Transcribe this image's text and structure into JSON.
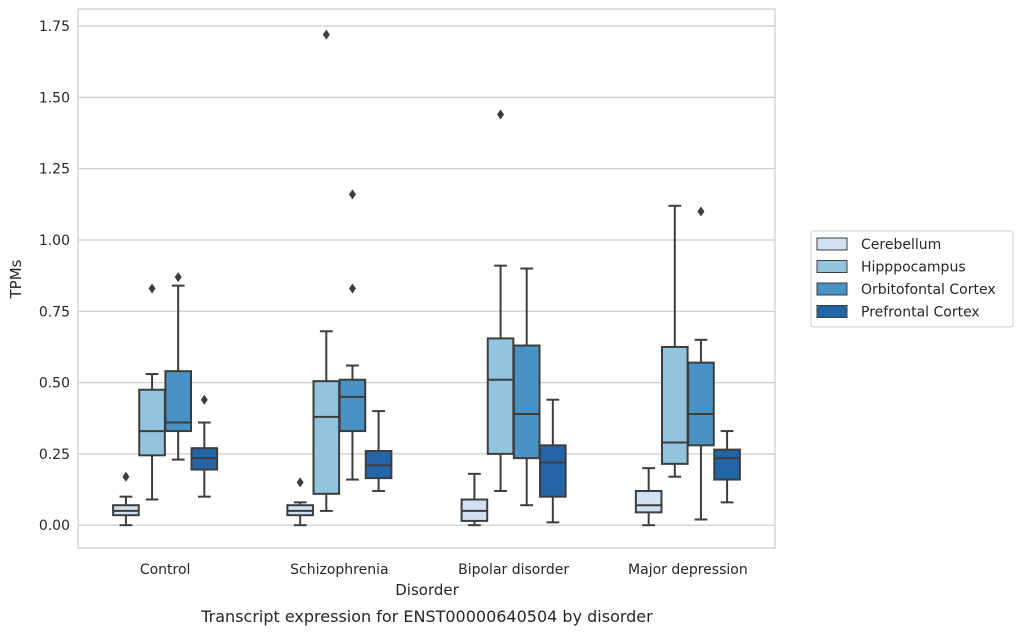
{
  "chart_data": {
    "type": "box",
    "caption": "Transcript expression for ENST00000640504 by disorder",
    "xlabel": "Disorder",
    "ylabel": "TPMs",
    "ylim": [
      -0.08,
      1.81
    ],
    "yticks": [
      "0.00",
      "0.25",
      "0.50",
      "0.75",
      "1.00",
      "1.25",
      "1.50",
      "1.75"
    ],
    "grid": true,
    "legend_position": "right",
    "categories": [
      "Control",
      "Schizophrenia",
      "Bipolar disorder",
      "Major depression"
    ],
    "series": [
      {
        "name": "Cerebellum",
        "color": "#cfe1f2",
        "boxes": [
          {
            "whislo": 0.0,
            "q1": 0.035,
            "med": 0.05,
            "q3": 0.07,
            "whishi": 0.1,
            "fliers": [
              0.17
            ]
          },
          {
            "whislo": 0.0,
            "q1": 0.035,
            "med": 0.05,
            "q3": 0.07,
            "whishi": 0.08,
            "fliers": [
              0.15
            ]
          },
          {
            "whislo": 0.0,
            "q1": 0.015,
            "med": 0.05,
            "q3": 0.09,
            "whishi": 0.18,
            "fliers": []
          },
          {
            "whislo": 0.0,
            "q1": 0.045,
            "med": 0.07,
            "q3": 0.12,
            "whishi": 0.2,
            "fliers": []
          }
        ]
      },
      {
        "name": "Hipppocampus",
        "color": "#93c4de",
        "boxes": [
          {
            "whislo": 0.09,
            "q1": 0.245,
            "med": 0.33,
            "q3": 0.475,
            "whishi": 0.53,
            "fliers": [
              0.83
            ]
          },
          {
            "whislo": 0.05,
            "q1": 0.11,
            "med": 0.38,
            "q3": 0.505,
            "whishi": 0.68,
            "fliers": [
              1.72
            ]
          },
          {
            "whislo": 0.12,
            "q1": 0.25,
            "med": 0.51,
            "q3": 0.655,
            "whishi": 0.91,
            "fliers": [
              1.44
            ]
          },
          {
            "whislo": 0.17,
            "q1": 0.215,
            "med": 0.29,
            "q3": 0.625,
            "whishi": 1.12,
            "fliers": []
          }
        ]
      },
      {
        "name": "Orbitofontal Cortex",
        "color": "#4a91c4",
        "boxes": [
          {
            "whislo": 0.23,
            "q1": 0.33,
            "med": 0.36,
            "q3": 0.54,
            "whishi": 0.84,
            "fliers": [
              0.87
            ]
          },
          {
            "whislo": 0.16,
            "q1": 0.33,
            "med": 0.45,
            "q3": 0.51,
            "whishi": 0.56,
            "fliers": [
              0.83,
              1.16
            ]
          },
          {
            "whislo": 0.07,
            "q1": 0.235,
            "med": 0.39,
            "q3": 0.63,
            "whishi": 0.9,
            "fliers": []
          },
          {
            "whislo": 0.02,
            "q1": 0.28,
            "med": 0.39,
            "q3": 0.57,
            "whishi": 0.65,
            "fliers": [
              1.1
            ]
          }
        ]
      },
      {
        "name": "Prefrontal Cortex",
        "color": "#2366a8",
        "boxes": [
          {
            "whislo": 0.1,
            "q1": 0.195,
            "med": 0.235,
            "q3": 0.27,
            "whishi": 0.36,
            "fliers": [
              0.44
            ]
          },
          {
            "whislo": 0.12,
            "q1": 0.165,
            "med": 0.21,
            "q3": 0.26,
            "whishi": 0.4,
            "fliers": []
          },
          {
            "whislo": 0.01,
            "q1": 0.1,
            "med": 0.22,
            "q3": 0.28,
            "whishi": 0.44,
            "fliers": []
          },
          {
            "whislo": 0.08,
            "q1": 0.16,
            "med": 0.235,
            "q3": 0.265,
            "whishi": 0.33,
            "fliers": []
          }
        ]
      }
    ]
  }
}
